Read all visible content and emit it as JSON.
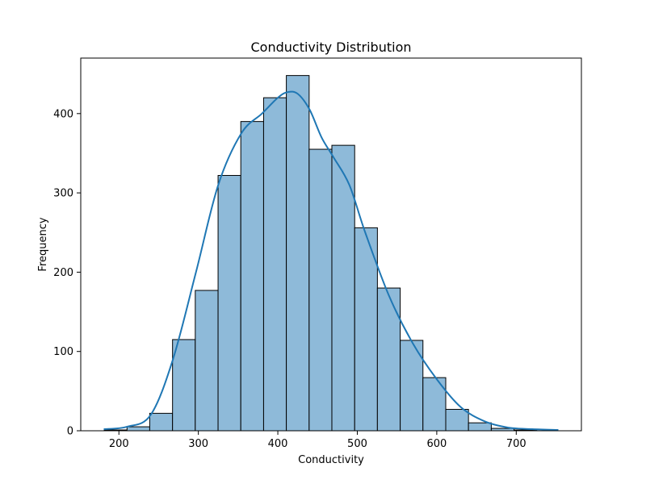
{
  "chart_data": {
    "type": "bar",
    "subtype": "histogram-with-kde",
    "title": "Conductivity Distribution",
    "xlabel": "Conductivity",
    "ylabel": "Frequency",
    "xlim": [
      152,
      782
    ],
    "ylim": [
      0,
      470
    ],
    "xticks": [
      200,
      300,
      400,
      500,
      600,
      700
    ],
    "yticks": [
      0,
      100,
      200,
      300,
      400
    ],
    "bin_edges": [
      181.5,
      210.2,
      238.8,
      267.5,
      296.1,
      324.8,
      353.4,
      382.1,
      410.7,
      439.4,
      468.0,
      496.7,
      525.3,
      554.0,
      582.6,
      611.3,
      639.9,
      668.6,
      697.2,
      725.9,
      753.5
    ],
    "values": [
      1,
      5,
      22,
      115,
      177,
      322,
      390,
      420,
      448,
      355,
      360,
      256,
      180,
      114,
      67,
      27,
      10,
      3,
      1,
      0
    ],
    "bar_fill": "#8ebad9",
    "bar_edge": "#000000",
    "kde": {
      "color": "#1f77b4",
      "x": [
        181,
        210,
        240,
        268,
        297,
        325,
        354,
        380,
        400,
        412,
        425,
        440,
        455,
        470,
        490,
        510,
        540,
        570,
        600,
        630,
        660,
        690,
        720,
        753
      ],
      "y": [
        2,
        5,
        20,
        90,
        200,
        310,
        375,
        400,
        420,
        427,
        425,
        405,
        370,
        345,
        310,
        250,
        170,
        110,
        65,
        30,
        12,
        4,
        2,
        1
      ]
    },
    "grid": false
  }
}
